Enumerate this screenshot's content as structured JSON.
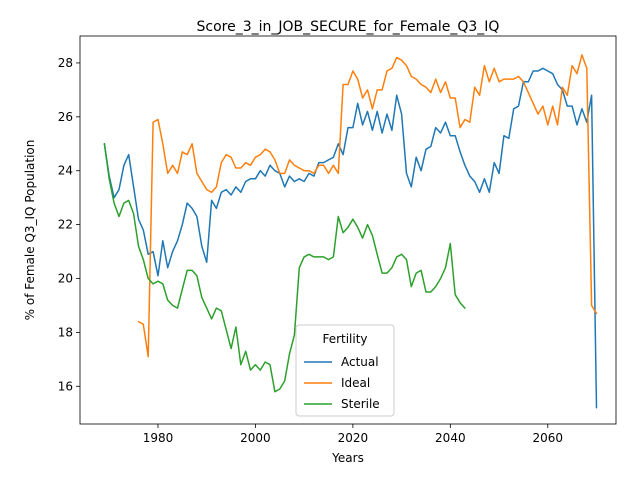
{
  "chart_data": {
    "type": "line",
    "title": "Score_3_in_JOB_SECURE_for_Female_Q3_IQ",
    "xlabel": "Years",
    "ylabel": "% of Female Q3_IQ Population",
    "xlim": [
      1964,
      2074
    ],
    "ylim": [
      14.6,
      29.0
    ],
    "xticks": [
      1980,
      2000,
      2020,
      2040,
      2060
    ],
    "yticks": [
      16,
      18,
      20,
      22,
      24,
      26,
      28
    ],
    "grid": false,
    "legend": {
      "title": "Fertility",
      "placement": "bottom-center"
    },
    "series": [
      {
        "name": "Actual",
        "color": "#1f77b4",
        "points": [
          [
            1969,
            25.0
          ],
          [
            1970,
            23.8
          ],
          [
            1971,
            23.0
          ],
          [
            1972,
            23.3
          ],
          [
            1973,
            24.2
          ],
          [
            1974,
            24.6
          ],
          [
            1975,
            23.4
          ],
          [
            1976,
            22.2
          ],
          [
            1977,
            21.8
          ],
          [
            1978,
            20.9
          ],
          [
            1979,
            21.0
          ],
          [
            1980,
            20.1
          ],
          [
            1981,
            21.4
          ],
          [
            1982,
            20.4
          ],
          [
            1983,
            21.0
          ],
          [
            1984,
            21.4
          ],
          [
            1985,
            22.0
          ],
          [
            1986,
            22.8
          ],
          [
            1987,
            22.6
          ],
          [
            1988,
            22.3
          ],
          [
            1989,
            21.2
          ],
          [
            1990,
            20.6
          ],
          [
            1991,
            22.9
          ],
          [
            1992,
            22.6
          ],
          [
            1993,
            23.2
          ],
          [
            1994,
            23.3
          ],
          [
            1995,
            23.1
          ],
          [
            1996,
            23.4
          ],
          [
            1997,
            23.2
          ],
          [
            1998,
            23.6
          ],
          [
            1999,
            23.7
          ],
          [
            2000,
            23.7
          ],
          [
            2001,
            24.0
          ],
          [
            2002,
            23.8
          ],
          [
            2003,
            24.2
          ],
          [
            2004,
            24.0
          ],
          [
            2005,
            23.9
          ],
          [
            2006,
            23.4
          ],
          [
            2007,
            23.8
          ],
          [
            2008,
            23.6
          ],
          [
            2009,
            23.7
          ],
          [
            2010,
            23.6
          ],
          [
            2011,
            23.9
          ],
          [
            2012,
            23.8
          ],
          [
            2013,
            24.3
          ],
          [
            2014,
            24.3
          ],
          [
            2015,
            24.4
          ],
          [
            2016,
            24.5
          ],
          [
            2017,
            25.0
          ],
          [
            2018,
            24.6
          ],
          [
            2019,
            25.6
          ],
          [
            2020,
            25.6
          ],
          [
            2021,
            26.5
          ],
          [
            2022,
            25.7
          ],
          [
            2023,
            26.2
          ],
          [
            2024,
            25.5
          ],
          [
            2025,
            26.2
          ],
          [
            2026,
            25.4
          ],
          [
            2027,
            26.1
          ],
          [
            2028,
            25.5
          ],
          [
            2029,
            26.8
          ],
          [
            2030,
            26.1
          ],
          [
            2031,
            23.9
          ],
          [
            2032,
            23.4
          ],
          [
            2033,
            24.5
          ],
          [
            2034,
            24.0
          ],
          [
            2035,
            24.8
          ],
          [
            2036,
            24.9
          ],
          [
            2037,
            25.6
          ],
          [
            2038,
            25.4
          ],
          [
            2039,
            25.8
          ],
          [
            2040,
            25.3
          ],
          [
            2041,
            25.3
          ],
          [
            2042,
            24.7
          ],
          [
            2043,
            24.2
          ],
          [
            2044,
            23.8
          ],
          [
            2045,
            23.6
          ],
          [
            2046,
            23.2
          ],
          [
            2047,
            23.7
          ],
          [
            2048,
            23.2
          ],
          [
            2049,
            24.3
          ],
          [
            2050,
            23.9
          ],
          [
            2051,
            25.3
          ],
          [
            2052,
            25.2
          ],
          [
            2053,
            26.3
          ],
          [
            2054,
            26.4
          ],
          [
            2055,
            27.3
          ],
          [
            2056,
            27.3
          ],
          [
            2057,
            27.7
          ],
          [
            2058,
            27.7
          ],
          [
            2059,
            27.8
          ],
          [
            2060,
            27.7
          ],
          [
            2061,
            27.6
          ],
          [
            2062,
            27.2
          ],
          [
            2063,
            27.0
          ],
          [
            2064,
            26.4
          ],
          [
            2065,
            26.4
          ],
          [
            2066,
            25.7
          ],
          [
            2067,
            26.3
          ],
          [
            2068,
            25.8
          ],
          [
            2069,
            26.8
          ],
          [
            2070,
            15.2
          ]
        ]
      },
      {
        "name": "Ideal",
        "color": "#ff7f0e",
        "points": [
          [
            1976,
            18.4
          ],
          [
            1977,
            18.3
          ],
          [
            1978,
            17.1
          ],
          [
            1979,
            25.8
          ],
          [
            1980,
            25.9
          ],
          [
            1981,
            25.0
          ],
          [
            1982,
            23.9
          ],
          [
            1983,
            24.2
          ],
          [
            1984,
            23.9
          ],
          [
            1985,
            24.7
          ],
          [
            1986,
            24.6
          ],
          [
            1987,
            25.0
          ],
          [
            1988,
            23.9
          ],
          [
            1989,
            23.6
          ],
          [
            1990,
            23.3
          ],
          [
            1991,
            23.2
          ],
          [
            1992,
            23.4
          ],
          [
            1993,
            24.3
          ],
          [
            1994,
            24.6
          ],
          [
            1995,
            24.5
          ],
          [
            1996,
            24.1
          ],
          [
            1997,
            24.1
          ],
          [
            1998,
            24.3
          ],
          [
            1999,
            24.2
          ],
          [
            2000,
            24.5
          ],
          [
            2001,
            24.6
          ],
          [
            2002,
            24.8
          ],
          [
            2003,
            24.7
          ],
          [
            2004,
            24.4
          ],
          [
            2005,
            23.9
          ],
          [
            2006,
            23.9
          ],
          [
            2007,
            24.4
          ],
          [
            2008,
            24.2
          ],
          [
            2009,
            24.1
          ],
          [
            2010,
            24.0
          ],
          [
            2011,
            24.0
          ],
          [
            2012,
            23.9
          ],
          [
            2013,
            24.2
          ],
          [
            2014,
            24.2
          ],
          [
            2015,
            23.9
          ],
          [
            2016,
            24.2
          ],
          [
            2017,
            23.9
          ],
          [
            2018,
            27.2
          ],
          [
            2019,
            27.2
          ],
          [
            2020,
            27.7
          ],
          [
            2021,
            27.4
          ],
          [
            2022,
            26.7
          ],
          [
            2023,
            27.0
          ],
          [
            2024,
            26.3
          ],
          [
            2025,
            27.0
          ],
          [
            2026,
            27.0
          ],
          [
            2027,
            27.7
          ],
          [
            2028,
            27.8
          ],
          [
            2029,
            28.2
          ],
          [
            2030,
            28.1
          ],
          [
            2031,
            27.9
          ],
          [
            2032,
            27.5
          ],
          [
            2033,
            27.4
          ],
          [
            2034,
            27.2
          ],
          [
            2035,
            27.1
          ],
          [
            2036,
            26.9
          ],
          [
            2037,
            27.4
          ],
          [
            2038,
            26.9
          ],
          [
            2039,
            27.3
          ],
          [
            2040,
            26.7
          ],
          [
            2041,
            26.7
          ],
          [
            2042,
            25.6
          ],
          [
            2043,
            25.9
          ],
          [
            2044,
            25.8
          ],
          [
            2045,
            27.1
          ],
          [
            2046,
            26.8
          ],
          [
            2047,
            27.9
          ],
          [
            2048,
            27.3
          ],
          [
            2049,
            27.8
          ],
          [
            2050,
            27.3
          ],
          [
            2051,
            27.4
          ],
          [
            2052,
            27.4
          ],
          [
            2053,
            27.4
          ],
          [
            2054,
            27.5
          ],
          [
            2055,
            27.3
          ],
          [
            2056,
            26.9
          ],
          [
            2057,
            26.5
          ],
          [
            2058,
            26.1
          ],
          [
            2059,
            26.4
          ],
          [
            2060,
            25.7
          ],
          [
            2061,
            26.4
          ],
          [
            2062,
            25.7
          ],
          [
            2063,
            27.1
          ],
          [
            2064,
            26.8
          ],
          [
            2065,
            27.9
          ],
          [
            2066,
            27.6
          ],
          [
            2067,
            28.3
          ],
          [
            2068,
            27.8
          ],
          [
            2069,
            19.0
          ],
          [
            2070,
            18.7
          ]
        ]
      },
      {
        "name": "Sterile",
        "color": "#2ca02c",
        "points": [
          [
            1969,
            25.0
          ],
          [
            1970,
            23.7
          ],
          [
            1971,
            22.8
          ],
          [
            1972,
            22.3
          ],
          [
            1973,
            22.8
          ],
          [
            1974,
            22.9
          ],
          [
            1975,
            22.4
          ],
          [
            1976,
            21.2
          ],
          [
            1977,
            20.7
          ],
          [
            1978,
            20.0
          ],
          [
            1979,
            19.8
          ],
          [
            1980,
            19.9
          ],
          [
            1981,
            19.8
          ],
          [
            1982,
            19.2
          ],
          [
            1983,
            19.0
          ],
          [
            1984,
            18.9
          ],
          [
            1985,
            19.6
          ],
          [
            1986,
            20.3
          ],
          [
            1987,
            20.3
          ],
          [
            1988,
            20.1
          ],
          [
            1989,
            19.3
          ],
          [
            1990,
            18.9
          ],
          [
            1991,
            18.5
          ],
          [
            1992,
            18.9
          ],
          [
            1993,
            18.8
          ],
          [
            1994,
            18.1
          ],
          [
            1995,
            17.4
          ],
          [
            1996,
            18.2
          ],
          [
            1997,
            16.8
          ],
          [
            1998,
            17.3
          ],
          [
            1999,
            16.6
          ],
          [
            2000,
            16.8
          ],
          [
            2001,
            16.6
          ],
          [
            2002,
            16.9
          ],
          [
            2003,
            16.8
          ],
          [
            2004,
            15.8
          ],
          [
            2005,
            15.9
          ],
          [
            2006,
            16.2
          ],
          [
            2007,
            17.2
          ],
          [
            2008,
            17.9
          ],
          [
            2009,
            20.4
          ],
          [
            2010,
            20.8
          ],
          [
            2011,
            20.9
          ],
          [
            2012,
            20.8
          ],
          [
            2013,
            20.8
          ],
          [
            2014,
            20.8
          ],
          [
            2015,
            20.7
          ],
          [
            2016,
            20.8
          ],
          [
            2017,
            22.3
          ],
          [
            2018,
            21.7
          ],
          [
            2019,
            21.9
          ],
          [
            2020,
            22.2
          ],
          [
            2021,
            21.9
          ],
          [
            2022,
            21.5
          ],
          [
            2023,
            22.0
          ],
          [
            2024,
            21.6
          ],
          [
            2025,
            20.9
          ],
          [
            2026,
            20.2
          ],
          [
            2027,
            20.2
          ],
          [
            2028,
            20.4
          ],
          [
            2029,
            20.8
          ],
          [
            2030,
            20.9
          ],
          [
            2031,
            20.7
          ],
          [
            2032,
            19.7
          ],
          [
            2033,
            20.2
          ],
          [
            2034,
            20.3
          ],
          [
            2035,
            19.5
          ],
          [
            2036,
            19.5
          ],
          [
            2037,
            19.7
          ],
          [
            2038,
            20.0
          ],
          [
            2039,
            20.4
          ],
          [
            2040,
            21.3
          ],
          [
            2041,
            19.4
          ],
          [
            2042,
            19.1
          ],
          [
            2043,
            18.9
          ]
        ]
      }
    ]
  }
}
